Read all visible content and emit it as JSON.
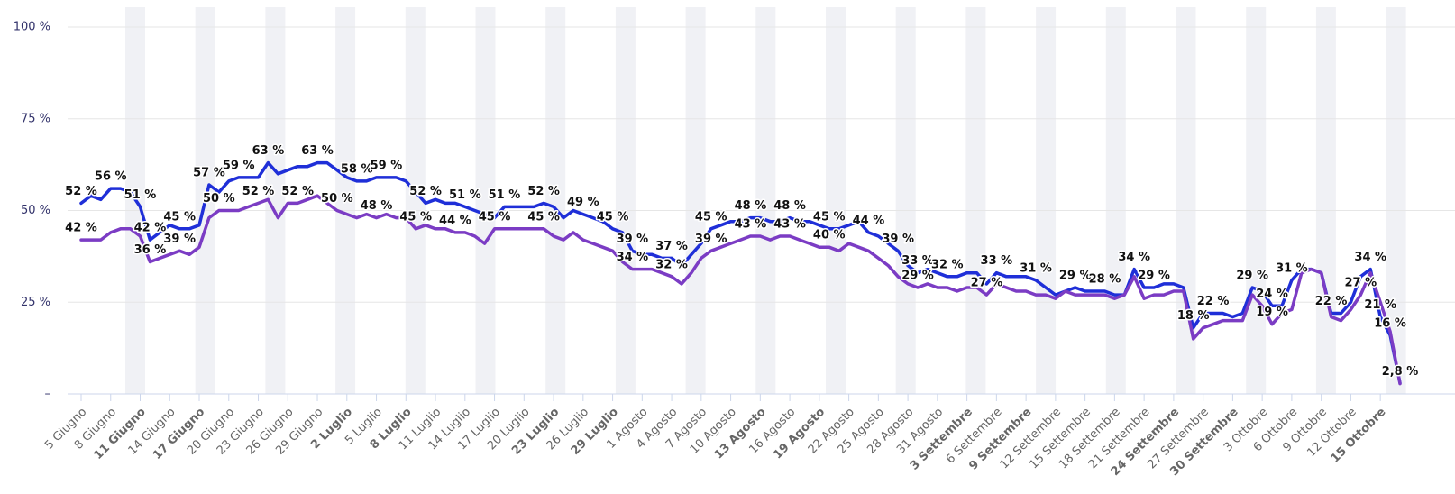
{
  "chart_data": {
    "type": "line",
    "categories": [
      "5 Giugno",
      null,
      null,
      "8 Giugno",
      null,
      null,
      "11 Giugno",
      null,
      null,
      "14 Giugno",
      null,
      null,
      "17 Giugno",
      null,
      null,
      "20 Giugno",
      null,
      null,
      "23 Giugno",
      null,
      null,
      "26 Giugno",
      null,
      null,
      "29 Giugno",
      null,
      null,
      "2 Luglio",
      null,
      null,
      "5 Luglio",
      null,
      null,
      "8 Luglio",
      null,
      null,
      "11 Luglio",
      null,
      null,
      "14 Luglio",
      null,
      null,
      "17 Luglio",
      null,
      null,
      "20 Luglio",
      null,
      null,
      "23 Luglio",
      null,
      null,
      "26 Luglio",
      null,
      null,
      "29 Luglio",
      null,
      null,
      "1 Agosto",
      null,
      null,
      "4 Agosto",
      null,
      null,
      "7 Agosto",
      null,
      null,
      "10 Agosto",
      null,
      null,
      "13 Agosto",
      null,
      null,
      "16 Agosto",
      null,
      null,
      "19 Agosto",
      null,
      null,
      "22 Agosto",
      null,
      null,
      "25 Agosto",
      null,
      null,
      "28 Agosto",
      null,
      null,
      "31 Agosto",
      null,
      null,
      "3 Settembre",
      null,
      null,
      "6 Settembre",
      null,
      null,
      "9 Settembre",
      null,
      null,
      "12 Settembre",
      null,
      null,
      "15 Settembre",
      null,
      null,
      "18 Settembre",
      null,
      null,
      "21 Settembre",
      null,
      null,
      "24 Settembre",
      null,
      null,
      "27 Settembre",
      null,
      null,
      "30 Settembre",
      null,
      null,
      "3 Ottobre",
      null,
      null,
      "6 Ottobre",
      null,
      null,
      "9 Ottobre",
      null,
      null,
      "12 Ottobre",
      null,
      null,
      "15 Ottobre",
      null,
      null
    ],
    "bold_categories": [
      6,
      12,
      27,
      33,
      48,
      54,
      69,
      75,
      90,
      96,
      111,
      117,
      132
    ],
    "series": [
      {
        "color": "#1f2fd8",
        "values": [
          52,
          54,
          53,
          56,
          56,
          55,
          51,
          42,
          44,
          46,
          45,
          45,
          46,
          57,
          55,
          58,
          59,
          59,
          59,
          63,
          60,
          61,
          62,
          62,
          63,
          63,
          61,
          59,
          58,
          58,
          59,
          59,
          59,
          58,
          55,
          52,
          53,
          52,
          52,
          51,
          50,
          49,
          48,
          51,
          51,
          51,
          51,
          52,
          51,
          48,
          50,
          49,
          48,
          47,
          45,
          44,
          39,
          38,
          38,
          37,
          37,
          35,
          38,
          41,
          45,
          46,
          47,
          47,
          48,
          48,
          47,
          47,
          48,
          47,
          47,
          46,
          45,
          45,
          46,
          47,
          44,
          43,
          41,
          39,
          35,
          33,
          34,
          33,
          32,
          32,
          33,
          33,
          30,
          33,
          32,
          32,
          32,
          31,
          29,
          27,
          28,
          29,
          28,
          28,
          28,
          27,
          27,
          34,
          29,
          29,
          30,
          30,
          29,
          18,
          22,
          22,
          22,
          21,
          22,
          29,
          28,
          24,
          24,
          31,
          34,
          34,
          33,
          22,
          22,
          25,
          32,
          34,
          21,
          16,
          3
        ],
        "value_labels": [
          "52 %",
          null,
          null,
          "56 %",
          null,
          null,
          "51 %",
          "42 %",
          null,
          null,
          "45 %",
          null,
          null,
          "57 %",
          null,
          null,
          "59 %",
          null,
          null,
          "63 %",
          null,
          null,
          null,
          null,
          "63 %",
          null,
          null,
          null,
          "58 %",
          null,
          null,
          "59 %",
          null,
          null,
          null,
          "52 %",
          null,
          null,
          null,
          "51 %",
          null,
          null,
          null,
          "51 %",
          null,
          null,
          null,
          "52 %",
          null,
          null,
          null,
          "49 %",
          null,
          null,
          "45 %",
          null,
          "39 %",
          null,
          null,
          null,
          "37 %",
          null,
          null,
          null,
          "45 %",
          null,
          null,
          null,
          "48 %",
          null,
          null,
          null,
          "48 %",
          null,
          null,
          null,
          "45 %",
          null,
          null,
          null,
          "44 %",
          null,
          null,
          "39 %",
          null,
          "33 %",
          null,
          null,
          "32 %",
          null,
          null,
          null,
          null,
          "33 %",
          null,
          null,
          null,
          "31 %",
          null,
          null,
          null,
          "29 %",
          null,
          null,
          "28 %",
          null,
          null,
          "34 %",
          null,
          "29 %",
          null,
          null,
          null,
          "18 %",
          null,
          "22 %",
          null,
          null,
          null,
          "29 %",
          null,
          "24 %",
          null,
          "31 %",
          null,
          null,
          null,
          "22 %",
          null,
          null,
          null,
          "34 %",
          "21 %",
          "16 %",
          null
        ]
      },
      {
        "color": "#7b3cc4",
        "values": [
          42,
          42,
          42,
          44,
          45,
          45,
          43,
          36,
          37,
          38,
          39,
          38,
          40,
          48,
          50,
          50,
          50,
          51,
          52,
          53,
          48,
          52,
          52,
          53,
          54,
          52,
          50,
          49,
          48,
          49,
          48,
          49,
          48,
          48,
          45,
          46,
          45,
          45,
          44,
          44,
          43,
          41,
          45,
          45,
          45,
          45,
          45,
          45,
          43,
          42,
          44,
          42,
          41,
          40,
          39,
          36,
          34,
          34,
          34,
          33,
          32,
          30,
          33,
          37,
          39,
          40,
          41,
          42,
          43,
          43,
          42,
          43,
          43,
          42,
          41,
          40,
          40,
          39,
          41,
          40,
          39,
          37,
          35,
          32,
          30,
          29,
          30,
          29,
          29,
          28,
          29,
          29,
          27,
          30,
          29,
          28,
          28,
          27,
          27,
          26,
          28,
          27,
          27,
          27,
          27,
          26,
          27,
          32,
          26,
          27,
          27,
          28,
          28,
          15,
          18,
          19,
          20,
          20,
          20,
          27,
          24,
          19,
          22,
          23,
          33,
          34,
          33,
          21,
          20,
          23,
          27,
          33,
          25,
          17,
          2.8
        ],
        "value_labels": [
          "42 %",
          null,
          null,
          null,
          null,
          null,
          null,
          "36 %",
          null,
          null,
          "39 %",
          null,
          null,
          null,
          "50 %",
          null,
          null,
          null,
          "52 %",
          null,
          null,
          null,
          "52 %",
          null,
          null,
          null,
          "50 %",
          null,
          null,
          null,
          "48 %",
          null,
          null,
          null,
          "45 %",
          null,
          null,
          null,
          "44 %",
          null,
          null,
          null,
          "45 %",
          null,
          null,
          null,
          null,
          "45 %",
          null,
          null,
          null,
          null,
          null,
          null,
          null,
          null,
          "34 %",
          null,
          null,
          null,
          "32 %",
          null,
          null,
          null,
          "39 %",
          null,
          null,
          null,
          "43 %",
          null,
          null,
          null,
          "43 %",
          null,
          null,
          null,
          "40 %",
          null,
          null,
          null,
          null,
          null,
          null,
          null,
          null,
          "29 %",
          null,
          null,
          null,
          null,
          null,
          null,
          "27 %",
          null,
          null,
          null,
          null,
          null,
          null,
          null,
          null,
          null,
          null,
          null,
          null,
          null,
          null,
          null,
          null,
          null,
          null,
          null,
          null,
          null,
          null,
          null,
          null,
          null,
          null,
          null,
          null,
          "19 %",
          null,
          null,
          null,
          null,
          null,
          null,
          null,
          null,
          "27 %",
          null,
          null,
          null,
          "2,8 %"
        ]
      }
    ],
    "ylim": [
      0,
      100
    ],
    "yticks": [
      {
        "value": 0,
        "label": "–"
      },
      {
        "value": 25,
        "label": "25 %"
      },
      {
        "value": 50,
        "label": "50 %"
      },
      {
        "value": 75,
        "label": "75 %"
      },
      {
        "value": 100,
        "label": "100 %"
      }
    ],
    "grid": true
  }
}
